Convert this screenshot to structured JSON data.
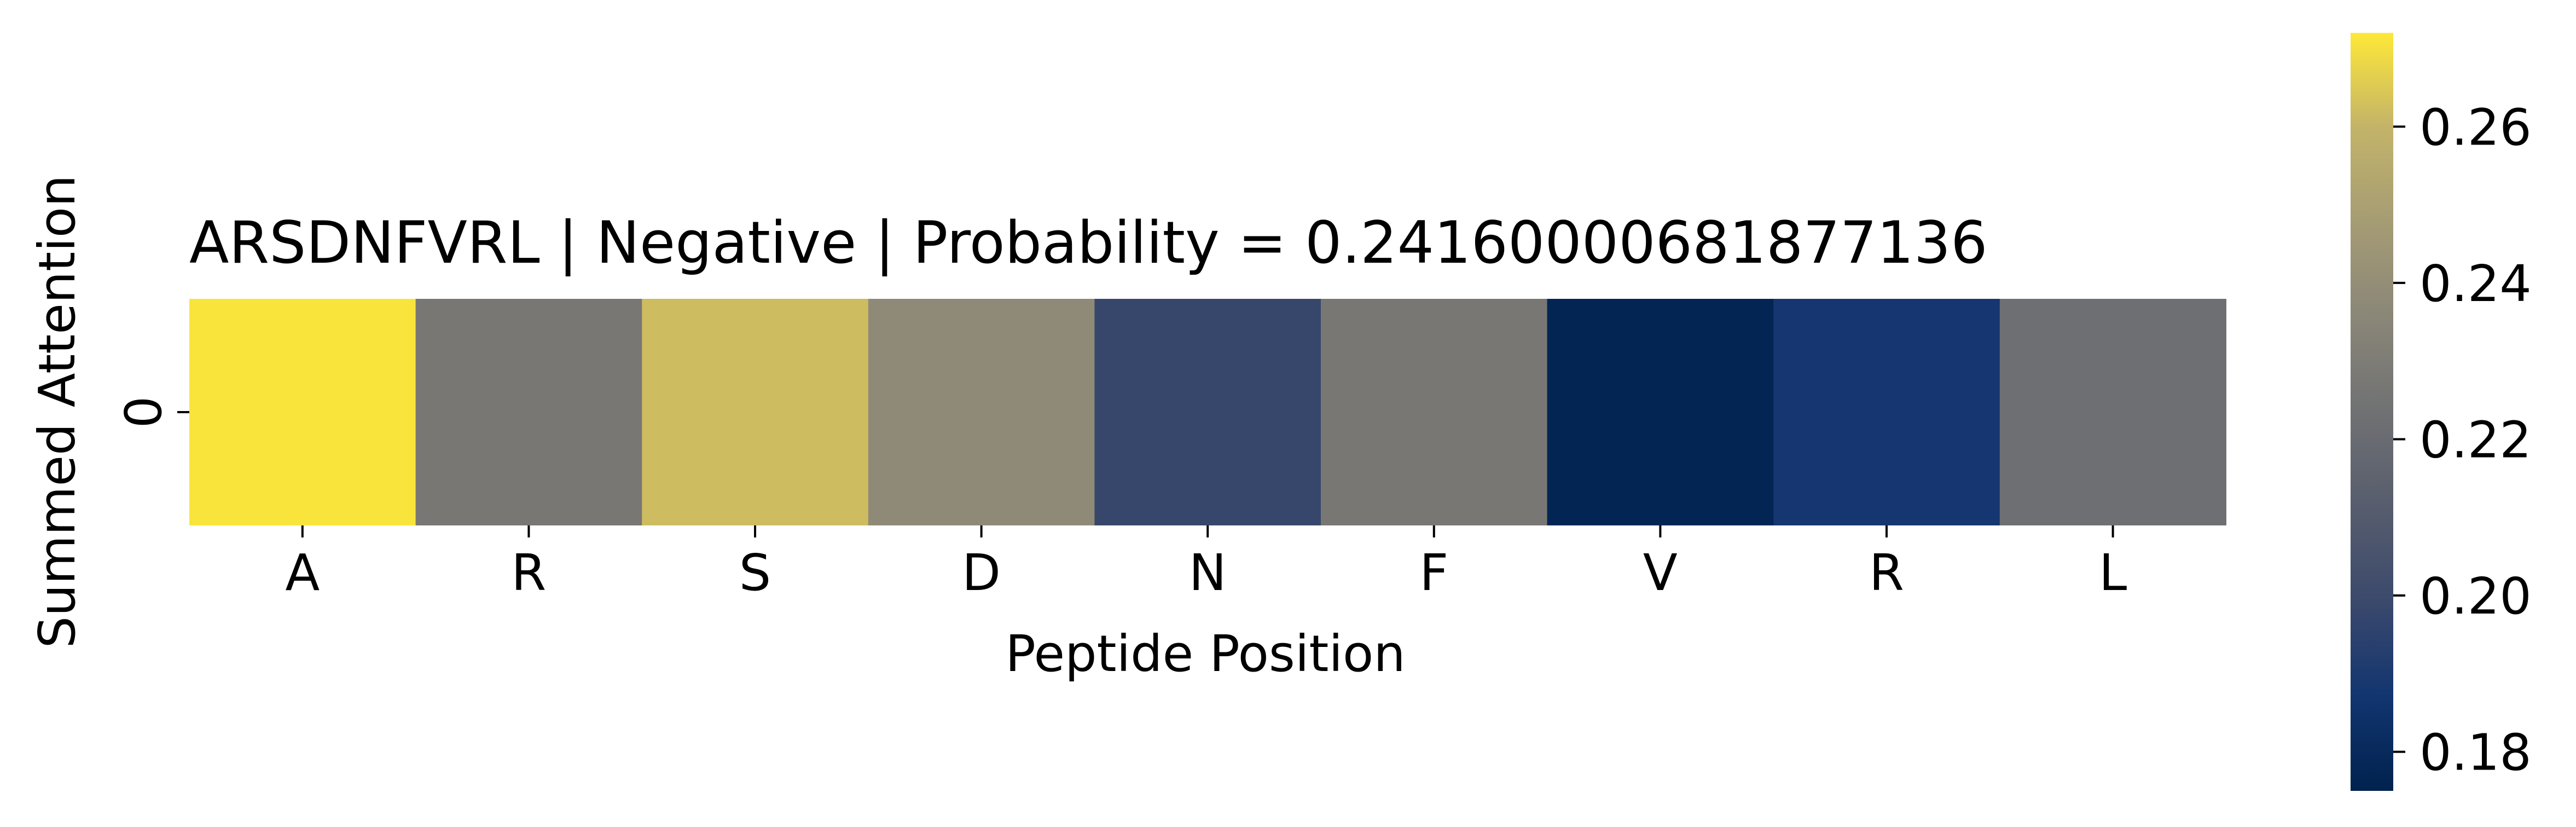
{
  "chart_data": {
    "type": "heatmap",
    "title": "ARSDNFVRL | Negative | Probability = 0.24160000681877136",
    "xlabel": "Peptide Position",
    "ylabel": "Summed Attention",
    "x_categories": [
      "A",
      "R",
      "S",
      "D",
      "N",
      "F",
      "V",
      "R",
      "L"
    ],
    "y_categories": [
      "0"
    ],
    "values": [
      [
        0.271,
        0.227,
        0.262,
        0.238,
        0.198,
        0.227,
        0.177,
        0.188,
        0.222
      ]
    ],
    "colormap": "cividis",
    "colorbar": {
      "vmin": 0.175,
      "vmax": 0.272,
      "ticks": [
        "0.18",
        "0.20",
        "0.22",
        "0.24",
        "0.26"
      ]
    }
  }
}
